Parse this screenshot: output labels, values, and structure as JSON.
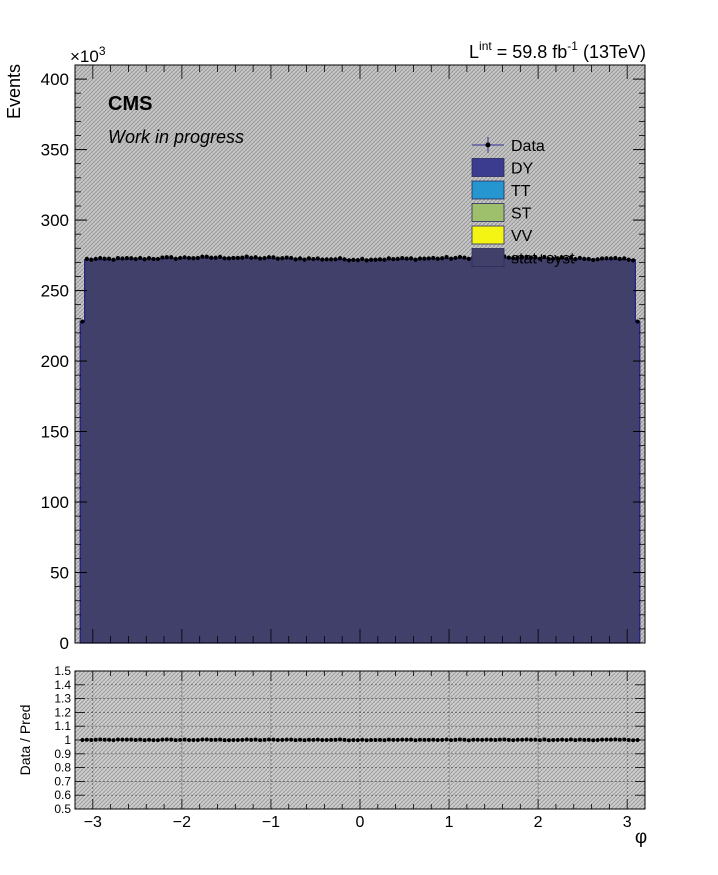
{
  "header": {
    "lumi_main": "L",
    "lumi_sup": "int",
    "lumi_value": " = 59.8 fb",
    "lumi_exp": "-1",
    "lumi_energy": " (13TeV)",
    "cms_label": "CMS",
    "cms_sublabel": "Work in progress",
    "y_multiplier": "×10",
    "y_multiplier_exp": "3"
  },
  "legend": {
    "items": [
      {
        "label": "Data",
        "kind": "marker",
        "color": "#000000",
        "line": "#4a4aa0"
      },
      {
        "label": "DY",
        "kind": "box",
        "color": "#3b3b8f"
      },
      {
        "label": "TT",
        "kind": "box",
        "color": "#2596cf"
      },
      {
        "label": "ST",
        "kind": "box",
        "color": "#9ebf6c"
      },
      {
        "label": "VV",
        "kind": "box",
        "color": "#f5f514"
      },
      {
        "label": "stat+syst",
        "kind": "box",
        "color": "#41406a"
      }
    ]
  },
  "colors": {
    "stack_fill": "#41406a",
    "stack_edge": "#1e1e8c",
    "hatch_bg": "#c9c9c9",
    "hatch_line": "#8a8a8a",
    "data_marker": "#000000"
  },
  "chart_data": [
    {
      "type": "bar",
      "xlabel": "",
      "ylabel": "Events",
      "xlim": [
        -3.2,
        3.2
      ],
      "ylim": [
        0,
        410
      ],
      "y_unit_multiplier": "×10^3",
      "yticks": [
        0,
        50,
        100,
        150,
        200,
        250,
        300,
        350,
        400
      ],
      "bins": {
        "edges_from": -3.14159,
        "edges_to": 3.14159,
        "count": 126
      },
      "mc_stack": {
        "name": "DY",
        "edge_value": 228,
        "bulk_value": 272.5,
        "note_values_in": "thousands of events"
      },
      "data": {
        "name": "Data",
        "edge_value": 228,
        "bulk_value": 272.8
      }
    },
    {
      "type": "scatter",
      "xlabel": "φ",
      "ylabel": "Data / Pred",
      "xlim": [
        -3.2,
        3.2
      ],
      "ylim": [
        0.5,
        1.5
      ],
      "yticks": [
        "0.5",
        "0.6",
        "0.7",
        "0.8",
        "0.9",
        "1",
        "1.1",
        "1.2",
        "1.3",
        "1.4",
        "1.5"
      ],
      "xticks": [
        "−3",
        "−2",
        "−1",
        "0",
        "1",
        "2",
        "3"
      ],
      "xtick_values": [
        -3,
        -2,
        -1,
        0,
        1,
        2,
        3
      ],
      "ratio_value": 1.0,
      "grid": true
    }
  ]
}
